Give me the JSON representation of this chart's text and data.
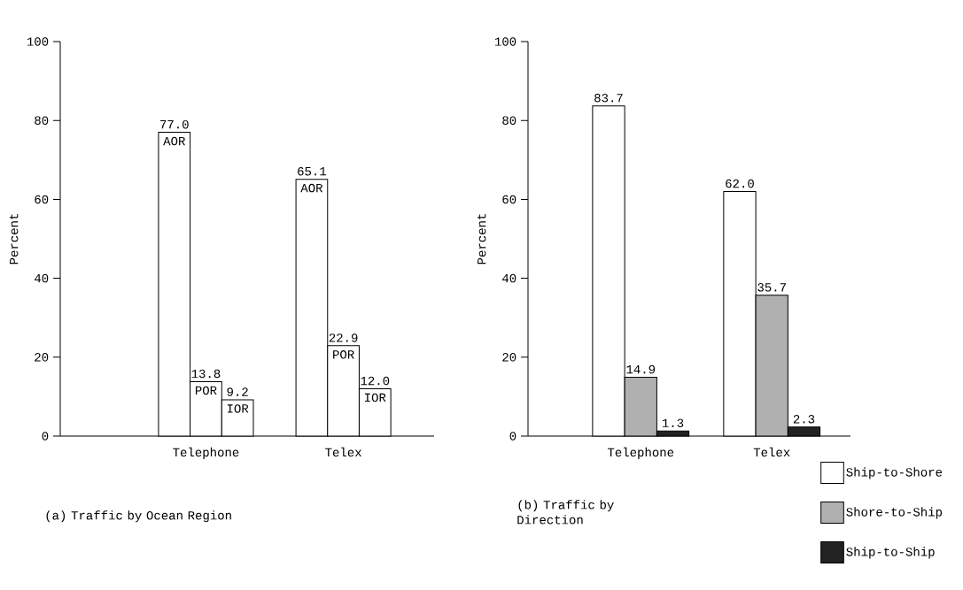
{
  "chart_data": [
    {
      "type": "bar",
      "title": "(a) Traffic by Ocean Region",
      "ylabel": "Percent",
      "categories": [
        "Telephone",
        "Telex"
      ],
      "ylim": [
        0,
        100
      ],
      "yticks": [
        0,
        20,
        40,
        60,
        80,
        100
      ],
      "legend": false,
      "series": [
        {
          "name": "AOR",
          "color": "#ffffff",
          "values": [
            77.0,
            65.1
          ],
          "value_labels": [
            "77.0",
            "65.1"
          ]
        },
        {
          "name": "POR",
          "color": "#ffffff",
          "values": [
            13.8,
            22.9
          ],
          "value_labels": [
            "13.8",
            "22.9"
          ]
        },
        {
          "name": "IOR",
          "color": "#ffffff",
          "values": [
            9.2,
            12.0
          ],
          "value_labels": [
            "9.2",
            "12.0"
          ]
        }
      ]
    },
    {
      "type": "bar",
      "title": "(b) Traffic by Direction",
      "ylabel": "Percent",
      "categories": [
        "Telephone",
        "Telex"
      ],
      "ylim": [
        0,
        100
      ],
      "yticks": [
        0,
        20,
        40,
        60,
        80,
        100
      ],
      "legend": "bottom right",
      "series": [
        {
          "name": "Ship-to-Shore",
          "color": "#ffffff",
          "values": [
            83.7,
            62.0
          ],
          "value_labels": [
            "83.7",
            "62.0"
          ]
        },
        {
          "name": "Shore-to-Ship",
          "color": "#b0b0b0",
          "values": [
            14.9,
            35.7
          ],
          "value_labels": [
            "14.9",
            "35.7"
          ]
        },
        {
          "name": "Ship-to-Ship",
          "color": "#222222",
          "values": [
            1.3,
            2.3
          ],
          "value_labels": [
            "1.3",
            "2.3"
          ]
        }
      ]
    }
  ]
}
